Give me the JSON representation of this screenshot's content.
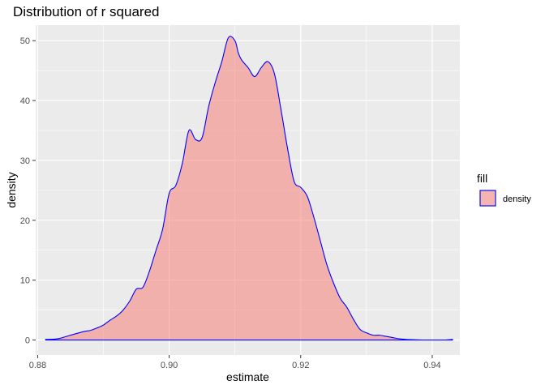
{
  "chart_data": {
    "type": "area",
    "title": "Distribution of r squared",
    "xlabel": "estimate",
    "ylabel": "density",
    "xlim": [
      0.8797,
      0.9442
    ],
    "ylim": [
      -2.5,
      52.6
    ],
    "x_ticks": [
      0.88,
      0.9,
      0.92,
      0.94
    ],
    "x_tick_labels": [
      "0.88",
      "0.90",
      "0.92",
      "0.94"
    ],
    "y_ticks": [
      0,
      10,
      20,
      30,
      40,
      50
    ],
    "y_tick_labels": [
      "0",
      "10",
      "20",
      "30",
      "40",
      "50"
    ],
    "grid": true,
    "legend": {
      "title": "fill",
      "position": "right",
      "entries": [
        {
          "label": "density",
          "fill": "#F8766D",
          "stroke": "#0000FF"
        }
      ]
    },
    "fill_color": "#F8766D",
    "fill_alpha": 0.5,
    "line_color": "#0000FF",
    "series": [
      {
        "x": [
          0.8812,
          0.883,
          0.885,
          0.887,
          0.888,
          0.889,
          0.89,
          0.891,
          0.892,
          0.893,
          0.894,
          0.895,
          0.896,
          0.897,
          0.898,
          0.899,
          0.9,
          0.901,
          0.902,
          0.903,
          0.904,
          0.905,
          0.906,
          0.907,
          0.908,
          0.909,
          0.91,
          0.9105,
          0.911,
          0.912,
          0.913,
          0.914,
          0.915,
          0.916,
          0.917,
          0.918,
          0.919,
          0.92,
          0.921,
          0.922,
          0.923,
          0.924,
          0.925,
          0.926,
          0.927,
          0.928,
          0.929,
          0.93,
          0.931,
          0.932,
          0.933,
          0.934,
          0.935,
          0.936,
          0.937,
          0.938,
          0.939,
          0.94,
          0.941,
          0.942,
          0.9431
        ],
        "y": [
          0.1,
          0.2,
          0.8,
          1.4,
          1.6,
          2.0,
          2.5,
          3.3,
          4.0,
          5.0,
          6.5,
          8.5,
          8.8,
          11.5,
          15.0,
          18.5,
          24.5,
          25.8,
          29.5,
          35.0,
          33.5,
          33.8,
          39.0,
          43.0,
          46.5,
          50.5,
          50.0,
          48.0,
          46.8,
          45.5,
          44.0,
          45.5,
          46.5,
          44.5,
          38.5,
          32.0,
          26.5,
          25.5,
          24.0,
          20.5,
          16.5,
          12.5,
          9.5,
          7.0,
          5.5,
          3.5,
          1.8,
          1.2,
          0.8,
          0.8,
          0.6,
          0.4,
          0.2,
          0.1,
          0.05,
          0.02,
          0.0,
          0.0,
          0.0,
          0.0,
          0.1
        ]
      }
    ]
  }
}
